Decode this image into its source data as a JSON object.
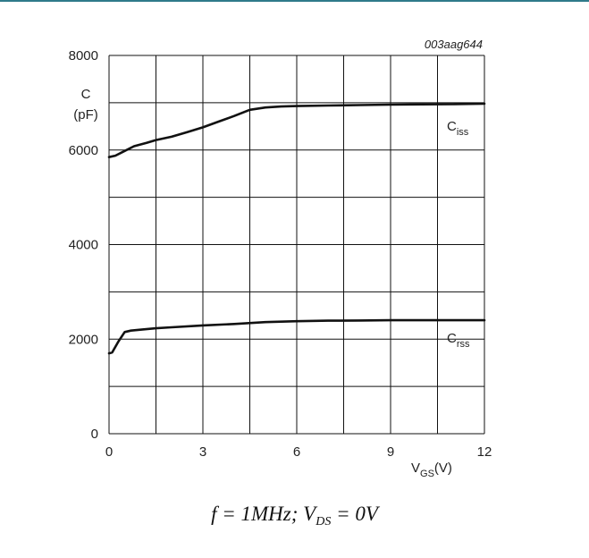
{
  "chart_data": {
    "type": "line",
    "figure_code": "003aag644",
    "xlabel": {
      "main": "V",
      "sub": "GS",
      "unit": "(V)"
    },
    "ylabel": {
      "line1": "C",
      "line2": "(pF)"
    },
    "xlim": [
      0,
      12
    ],
    "ylim": [
      0,
      8000
    ],
    "x_ticks": [
      0,
      3,
      6,
      9,
      12
    ],
    "y_ticks": [
      0,
      2000,
      4000,
      6000,
      8000
    ],
    "x_gridlines": [
      0,
      1.5,
      3,
      4.5,
      6,
      7.5,
      9,
      10.5,
      12
    ],
    "y_gridlines": [
      0,
      1000,
      2000,
      3000,
      4000,
      5000,
      6000,
      7000,
      8000
    ],
    "grid": true,
    "series": [
      {
        "name": "C_iss",
        "label": {
          "main": "C",
          "sub": "iss"
        },
        "x": [
          0,
          0.2,
          0.5,
          0.8,
          1.2,
          1.5,
          2.0,
          2.5,
          3.0,
          3.5,
          4.0,
          4.5,
          5.0,
          5.5,
          6.0,
          7.0,
          8.0,
          9.0,
          10.0,
          11.0,
          12.0
        ],
        "y": [
          5850,
          5880,
          5980,
          6080,
          6150,
          6210,
          6280,
          6380,
          6480,
          6600,
          6720,
          6850,
          6900,
          6920,
          6930,
          6940,
          6950,
          6960,
          6965,
          6970,
          6980
        ]
      },
      {
        "name": "C_rss",
        "label": {
          "main": "C",
          "sub": "rss"
        },
        "x": [
          0,
          0.1,
          0.3,
          0.5,
          0.7,
          1.0,
          1.5,
          2.0,
          3.0,
          4.0,
          5.0,
          6.0,
          7.0,
          8.0,
          9.0,
          10.0,
          11.0,
          12.0
        ],
        "y": [
          1700,
          1720,
          1950,
          2150,
          2180,
          2200,
          2230,
          2250,
          2290,
          2320,
          2360,
          2380,
          2390,
          2395,
          2400,
          2400,
          2400,
          2400
        ]
      }
    ]
  },
  "condition": {
    "f_text": "f",
    "eq1": " = 1",
    "mhz": "MHz",
    "sep": "; ",
    "v": "V",
    "v_sub": "DS",
    "eq2": " = 0",
    "unit": "V"
  }
}
